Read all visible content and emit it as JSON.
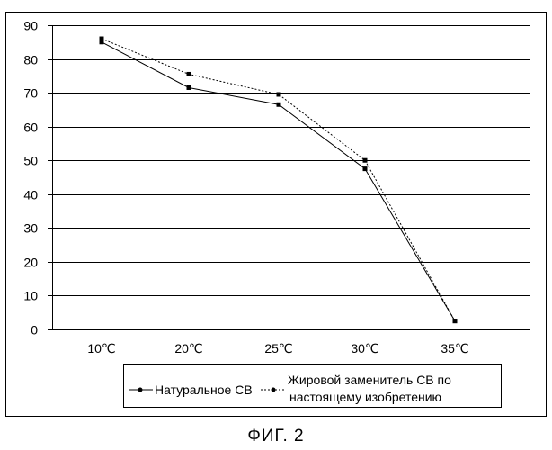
{
  "chart_data": {
    "type": "line",
    "categories": [
      "10℃",
      "20℃",
      "25℃",
      "30℃",
      "35℃"
    ],
    "series": [
      {
        "name": "Натуральное СВ",
        "values": [
          85,
          71.5,
          66.5,
          47.5,
          2.5
        ],
        "color": "#000000",
        "dash": "solid"
      },
      {
        "name": "Жировой заменитель СВ по настоящему изобретению",
        "values": [
          86,
          75.5,
          69.5,
          50,
          2.5
        ],
        "color": "#000000",
        "dash": "dotted"
      }
    ],
    "ylim": [
      0,
      90
    ],
    "yticks": [
      "0",
      "10",
      "20",
      "30",
      "40",
      "50",
      "60",
      "70",
      "80",
      "90"
    ],
    "grid": true,
    "legend_position": "bottom",
    "legend": {
      "series1_label": "Натуральное СВ",
      "series2_label_line1": "Жировой заменитель СВ по",
      "series2_label_line2": "настоящему изобретению"
    }
  },
  "caption": "ФИГ. 2"
}
